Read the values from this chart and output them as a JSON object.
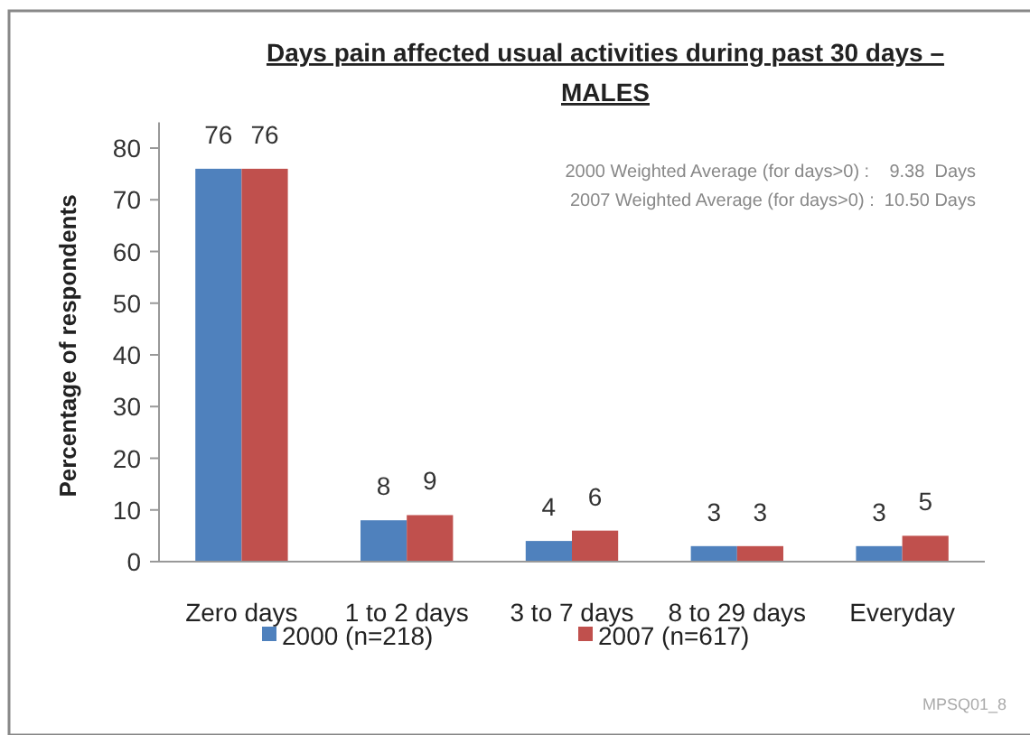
{
  "chart_data": {
    "type": "bar",
    "title": "Days pain affected usual activities during past 30 days – MALES",
    "ylabel": "Percentage of respondents",
    "categories": [
      "Zero days",
      "1 to 2 days",
      "3 to 7 days",
      "8 to 29 days",
      "Everyday"
    ],
    "series": [
      {
        "name": "2000 (n=218)",
        "color": "#4f81bd",
        "values": [
          76,
          8,
          4,
          3,
          3
        ]
      },
      {
        "name": "2007 (n=617)",
        "color": "#c0504d",
        "values": [
          76,
          9,
          6,
          3,
          5
        ]
      }
    ],
    "ylim": [
      0,
      85
    ],
    "yticks": [
      0,
      10,
      20,
      30,
      40,
      50,
      60,
      70,
      80
    ],
    "data_labels": true,
    "legend": "bottom",
    "grid": false,
    "annotations": [
      "2000 Weighted Average (for days>0) :    9.38  Days",
      "2007 Weighted Average (for days>0) :  10.50 Days",
      "MPSQ01_8"
    ]
  }
}
